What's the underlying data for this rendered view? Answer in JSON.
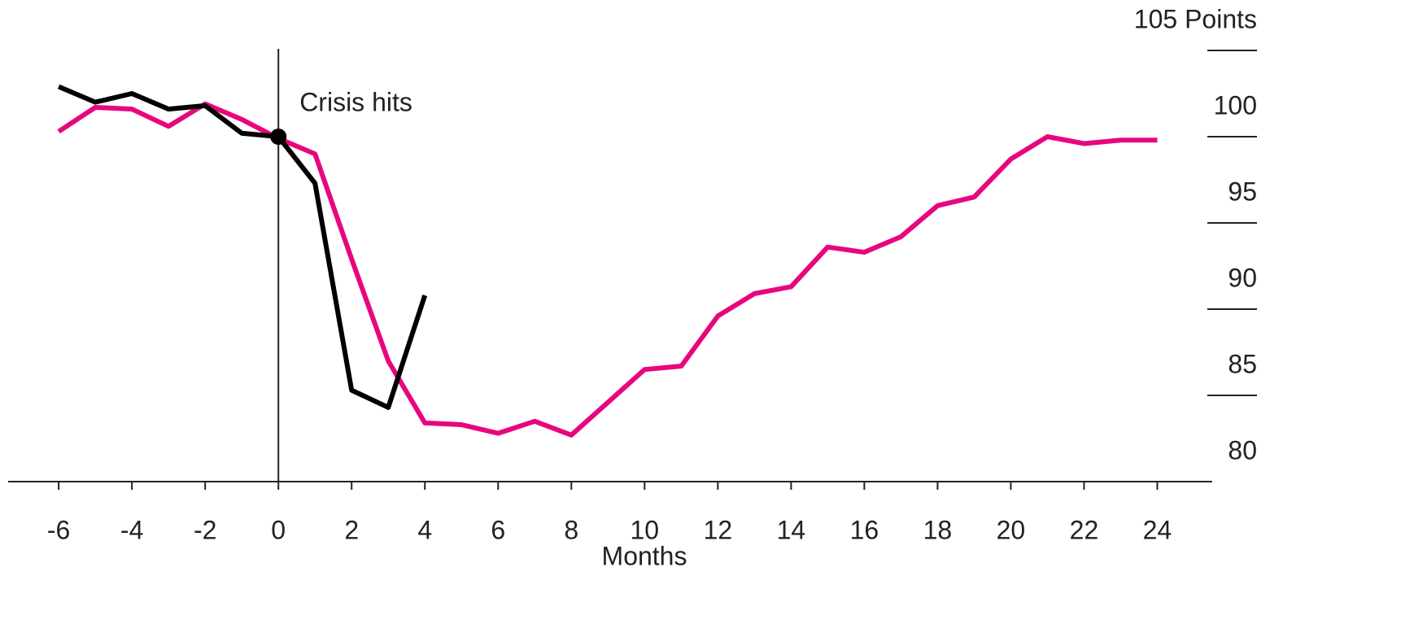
{
  "chart_data": {
    "type": "line",
    "x": [
      -6,
      -5,
      -4,
      -3,
      -2,
      -1,
      0,
      1,
      2,
      3,
      4,
      5,
      6,
      7,
      8,
      9,
      10,
      11,
      12,
      13,
      14,
      15,
      16,
      17,
      18,
      19,
      20,
      21,
      22,
      23,
      24
    ],
    "series": [
      {
        "color": "#000000",
        "values": [
          102.9,
          102.0,
          102.5,
          101.6,
          101.8,
          100.2,
          100.0,
          97.3,
          85.3,
          84.3,
          90.8,
          null,
          null,
          null,
          null,
          null,
          null,
          null,
          null,
          null,
          null,
          null,
          null,
          null,
          null,
          null,
          null,
          null,
          null,
          null,
          null
        ]
      },
      {
        "color": "#e8067f",
        "values": [
          100.3,
          101.7,
          101.6,
          100.6,
          101.9,
          101.0,
          99.9,
          99.0,
          92.9,
          87.0,
          83.4,
          83.3,
          82.8,
          83.5,
          82.7,
          84.6,
          86.5,
          86.7,
          89.6,
          90.9,
          91.3,
          93.6,
          93.3,
          94.2,
          96.0,
          96.5,
          98.7,
          100.0,
          99.6,
          99.8,
          99.8
        ]
      }
    ],
    "xlabel": "Months",
    "xlim": [
      -7.38,
      25.5
    ],
    "xticks": [
      -6,
      -4,
      -2,
      0,
      2,
      4,
      6,
      8,
      10,
      12,
      14,
      16,
      18,
      20,
      22,
      24
    ],
    "ylim": [
      80,
      105
    ],
    "yticks": [
      80,
      85,
      90,
      95,
      100,
      {
        "value": 105,
        "label": "105 Points"
      }
    ],
    "yaxis_side": "right",
    "annotations": [
      {
        "text": "Crisis hits",
        "x": 0,
        "y": 100
      }
    ]
  }
}
